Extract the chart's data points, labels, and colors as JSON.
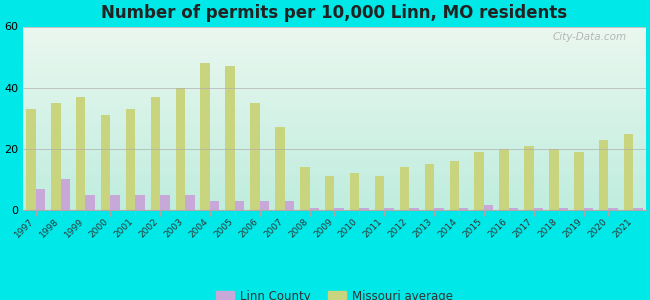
{
  "title": "Number of permits per 10,000 Linn, MO residents",
  "years": [
    1997,
    1998,
    1999,
    2000,
    2001,
    2002,
    2003,
    2004,
    2005,
    2006,
    2007,
    2008,
    2009,
    2010,
    2011,
    2012,
    2013,
    2014,
    2015,
    2016,
    2017,
    2018,
    2019,
    2020,
    2021
  ],
  "linn_county": [
    7,
    10,
    5,
    5,
    5,
    5,
    5,
    3,
    3,
    3,
    3,
    0.5,
    0.5,
    0.5,
    0.5,
    0.5,
    0.5,
    0.5,
    1.5,
    0.5,
    0.5,
    0.5,
    0.5,
    0.5,
    0.5
  ],
  "missouri_avg": [
    33,
    35,
    37,
    31,
    33,
    37,
    40,
    48,
    47,
    35,
    27,
    14,
    11,
    12,
    11,
    14,
    15,
    16,
    19,
    20,
    21,
    20,
    19,
    23,
    25
  ],
  "linn_color": "#c8a8d8",
  "mo_color": "#c8d47e",
  "background_outer": "#00e8e8",
  "ylim": [
    0,
    60
  ],
  "yticks": [
    0,
    20,
    40,
    60
  ],
  "bar_width": 0.38,
  "legend_linn": "Linn County",
  "legend_mo": "Missouri average",
  "watermark": "City-Data.com"
}
